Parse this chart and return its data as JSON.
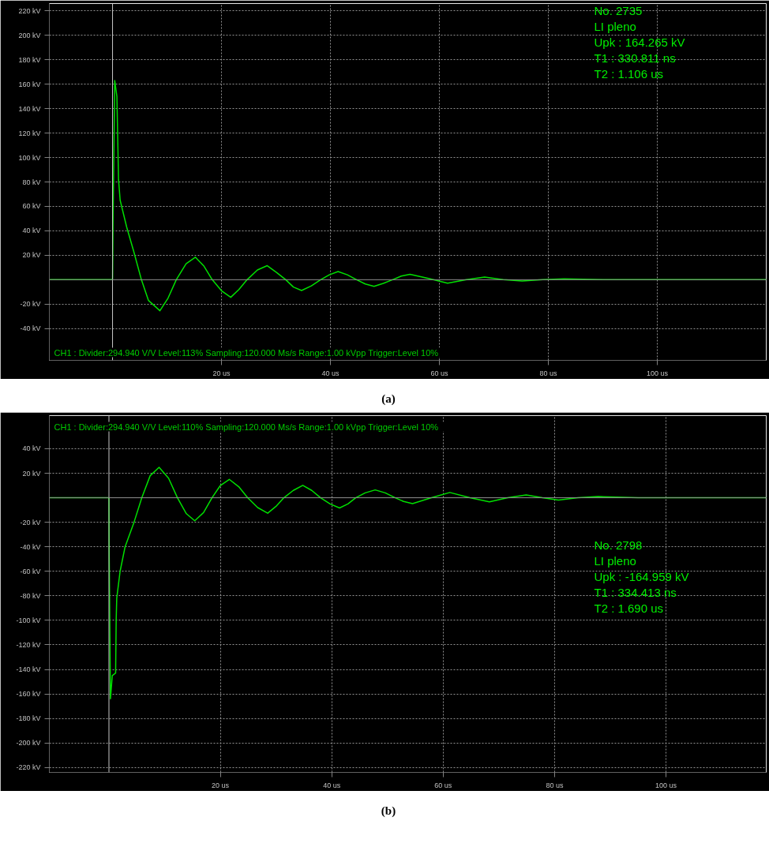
{
  "chart_data": [
    {
      "type": "line",
      "title": "(a)",
      "xlim": [
        -11.6,
        120
      ],
      "ylim": [
        -66,
        226
      ],
      "xticks": [
        {
          "value": 20,
          "label": "20 us"
        },
        {
          "value": 40,
          "label": "40 us"
        },
        {
          "value": 60,
          "label": "60 us"
        },
        {
          "value": 80,
          "label": "80 us"
        },
        {
          "value": 100,
          "label": "100 us"
        }
      ],
      "yticks": [
        {
          "value": -40,
          "label": "-40 kV"
        },
        {
          "value": -20,
          "label": "-20 kV"
        },
        {
          "value": 20,
          "label": "20 kV"
        },
        {
          "value": 40,
          "label": "40 kV"
        },
        {
          "value": 60,
          "label": "60 kV"
        },
        {
          "value": 80,
          "label": "80 kV"
        },
        {
          "value": 100,
          "label": "100 kV"
        },
        {
          "value": 120,
          "label": "120 kV"
        },
        {
          "value": 140,
          "label": "140 kV"
        },
        {
          "value": 160,
          "label": "160 kV"
        },
        {
          "value": 180,
          "label": "180 kV"
        },
        {
          "value": 200,
          "label": "200 kV"
        },
        {
          "value": 220,
          "label": "220 kV"
        }
      ],
      "grid": true,
      "marker": "none",
      "line_style": "solid",
      "ref_lines": [
        {
          "axis": "x",
          "value": 0,
          "color": "#c8c8c8"
        },
        {
          "axis": "y",
          "value": 0,
          "color": "#909090"
        }
      ],
      "annotations": [
        "CH1 : Divider:294.940 V/V  Level:113%  Sampling:120.000 Ms/s  Range:1.00 kVpp  Trigger:Level 10%",
        "No. 2735",
        "LI pleno",
        "Upk        : 164.265 kV",
        "T1          : 330.811 ns",
        "T2          : 1.106 us"
      ],
      "series": [
        {
          "color": "#00e000",
          "x": [
            -11.6,
            0,
            0.1,
            0.4,
            0.8,
            1.1,
            1.4,
            2.6,
            3.9,
            5.3,
            6.6,
            8.7,
            10.2,
            11.7,
            13.5,
            15.2,
            16.8,
            18.3,
            20,
            21.7,
            23.2,
            24.7,
            26.6,
            28.4,
            30.1,
            31.8,
            33.2,
            34.7,
            36.5,
            38.2,
            39.8,
            41.4,
            43.1,
            44.8,
            46.4,
            48,
            49.7,
            51.4,
            53,
            54.6,
            58,
            61.5,
            65,
            68.3,
            71.7,
            75.2,
            79,
            82.9,
            90,
            100,
            120
          ],
          "values": [
            0,
            0,
            50,
            163,
            150,
            82,
            65,
            43,
            23,
            0,
            -17,
            -25.4,
            -15,
            0,
            13,
            18.4,
            11,
            0,
            -9,
            -14.4,
            -8,
            0,
            8,
            11.5,
            6,
            0,
            -6,
            -8.8,
            -5,
            0,
            4,
            6.7,
            4,
            0,
            -3.5,
            -5.4,
            -3,
            0,
            3,
            4.4,
            1,
            -2.9,
            0,
            2.1,
            0,
            -1.1,
            0,
            0.7,
            0,
            0,
            0
          ]
        }
      ]
    },
    {
      "type": "line",
      "title": "(b)",
      "xlim": [
        -10.7,
        118
      ],
      "ylim": [
        -224,
        67
      ],
      "xticks": [
        {
          "value": 20,
          "label": "20 us"
        },
        {
          "value": 40,
          "label": "40 us"
        },
        {
          "value": 60,
          "label": "60 us"
        },
        {
          "value": 80,
          "label": "80 us"
        },
        {
          "value": 100,
          "label": "100 us"
        }
      ],
      "yticks": [
        {
          "value": -220,
          "label": "-220 kV"
        },
        {
          "value": -200,
          "label": "-200 kV"
        },
        {
          "value": -180,
          "label": "-180 kV"
        },
        {
          "value": -160,
          "label": "-160 kV"
        },
        {
          "value": -140,
          "label": "-140 kV"
        },
        {
          "value": -120,
          "label": "-120 kV"
        },
        {
          "value": -100,
          "label": "-100 kV"
        },
        {
          "value": -80,
          "label": "-80 kV"
        },
        {
          "value": -60,
          "label": "-60 kV"
        },
        {
          "value": -40,
          "label": "-40 kV"
        },
        {
          "value": -20,
          "label": "-20 kV"
        },
        {
          "value": 20,
          "label": "20 kV"
        },
        {
          "value": 40,
          "label": "40 kV"
        }
      ],
      "grid": true,
      "marker": "none",
      "line_style": "solid",
      "ref_lines": [
        {
          "axis": "x",
          "value": 0,
          "color": "#c8c8c8"
        },
        {
          "axis": "y",
          "value": 0,
          "color": "#909090"
        }
      ],
      "annotations": [
        "CH1 : Divider:294.940 V/V  Level:110%  Sampling:120.000 Ms/s  Range:1.00 kVpp  Trigger:Level 10%",
        "No. 2798",
        "LI pleno",
        "Upk        : -164.959 kV",
        "T1          : 334.413 ns",
        "T2          : 1.690 us"
      ],
      "series": [
        {
          "color": "#00e000",
          "x": [
            -10.7,
            0,
            0.05,
            0.27,
            0.6,
            1.2,
            1.3,
            1.4,
            2,
            2.9,
            4.5,
            5.9,
            7.4,
            9,
            10.7,
            12.3,
            13.9,
            15.4,
            17,
            18.5,
            20,
            21.6,
            23.3,
            24.9,
            26.7,
            28.5,
            30,
            31.4,
            33.1,
            34.8,
            36.4,
            38,
            39.7,
            41.4,
            42.9,
            44.3,
            46,
            47.8,
            49.6,
            51.4,
            52.9,
            54.5,
            57.9,
            61.2,
            64.8,
            68.3,
            71.6,
            74.9,
            77.8,
            80.7,
            84.2,
            87.8,
            95,
            105,
            118
          ],
          "values": [
            0,
            0,
            -49,
            -164,
            -145,
            -143,
            -100,
            -82,
            -60,
            -40,
            -20,
            0,
            18,
            24.8,
            16,
            0,
            -13,
            -18.8,
            -12,
            0,
            10,
            15,
            9,
            0,
            -8,
            -12.6,
            -7,
            0,
            6,
            10.1,
            6,
            0,
            -5,
            -8.3,
            -5,
            0,
            4,
            6.4,
            4,
            0,
            -3,
            -4.8,
            0,
            4.3,
            0,
            -3.3,
            0,
            2.3,
            0,
            -1.9,
            0,
            1,
            0,
            0,
            0
          ]
        }
      ]
    }
  ]
}
